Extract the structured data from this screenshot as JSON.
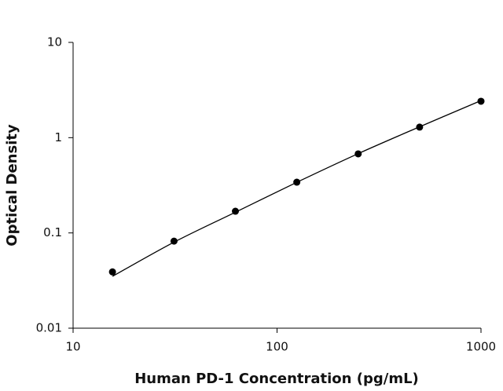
{
  "chart_data": {
    "type": "scatter",
    "x_label": "Human PD-1 Concentration (pg/mL)",
    "y_label": "Optical Density",
    "x": [
      15.6,
      31.25,
      62.5,
      125,
      250,
      500,
      1000
    ],
    "series": [
      {
        "color": "#000000",
        "values": [
          0.039,
          0.082,
          0.169,
          0.341,
          0.676,
          1.29,
          2.41
        ]
      },
      {
        "color": "#000000",
        "line": true,
        "values": [
          0.035,
          0.08,
          0.165,
          0.34,
          0.68,
          1.3,
          2.45
        ]
      }
    ],
    "xlim": [
      10,
      1000
    ],
    "ylim": [
      0.01,
      10
    ],
    "xticks": [
      10,
      100,
      1000
    ],
    "yticks": [
      0.01,
      0.1,
      1,
      10
    ],
    "log_x": true,
    "log_y": true
  }
}
